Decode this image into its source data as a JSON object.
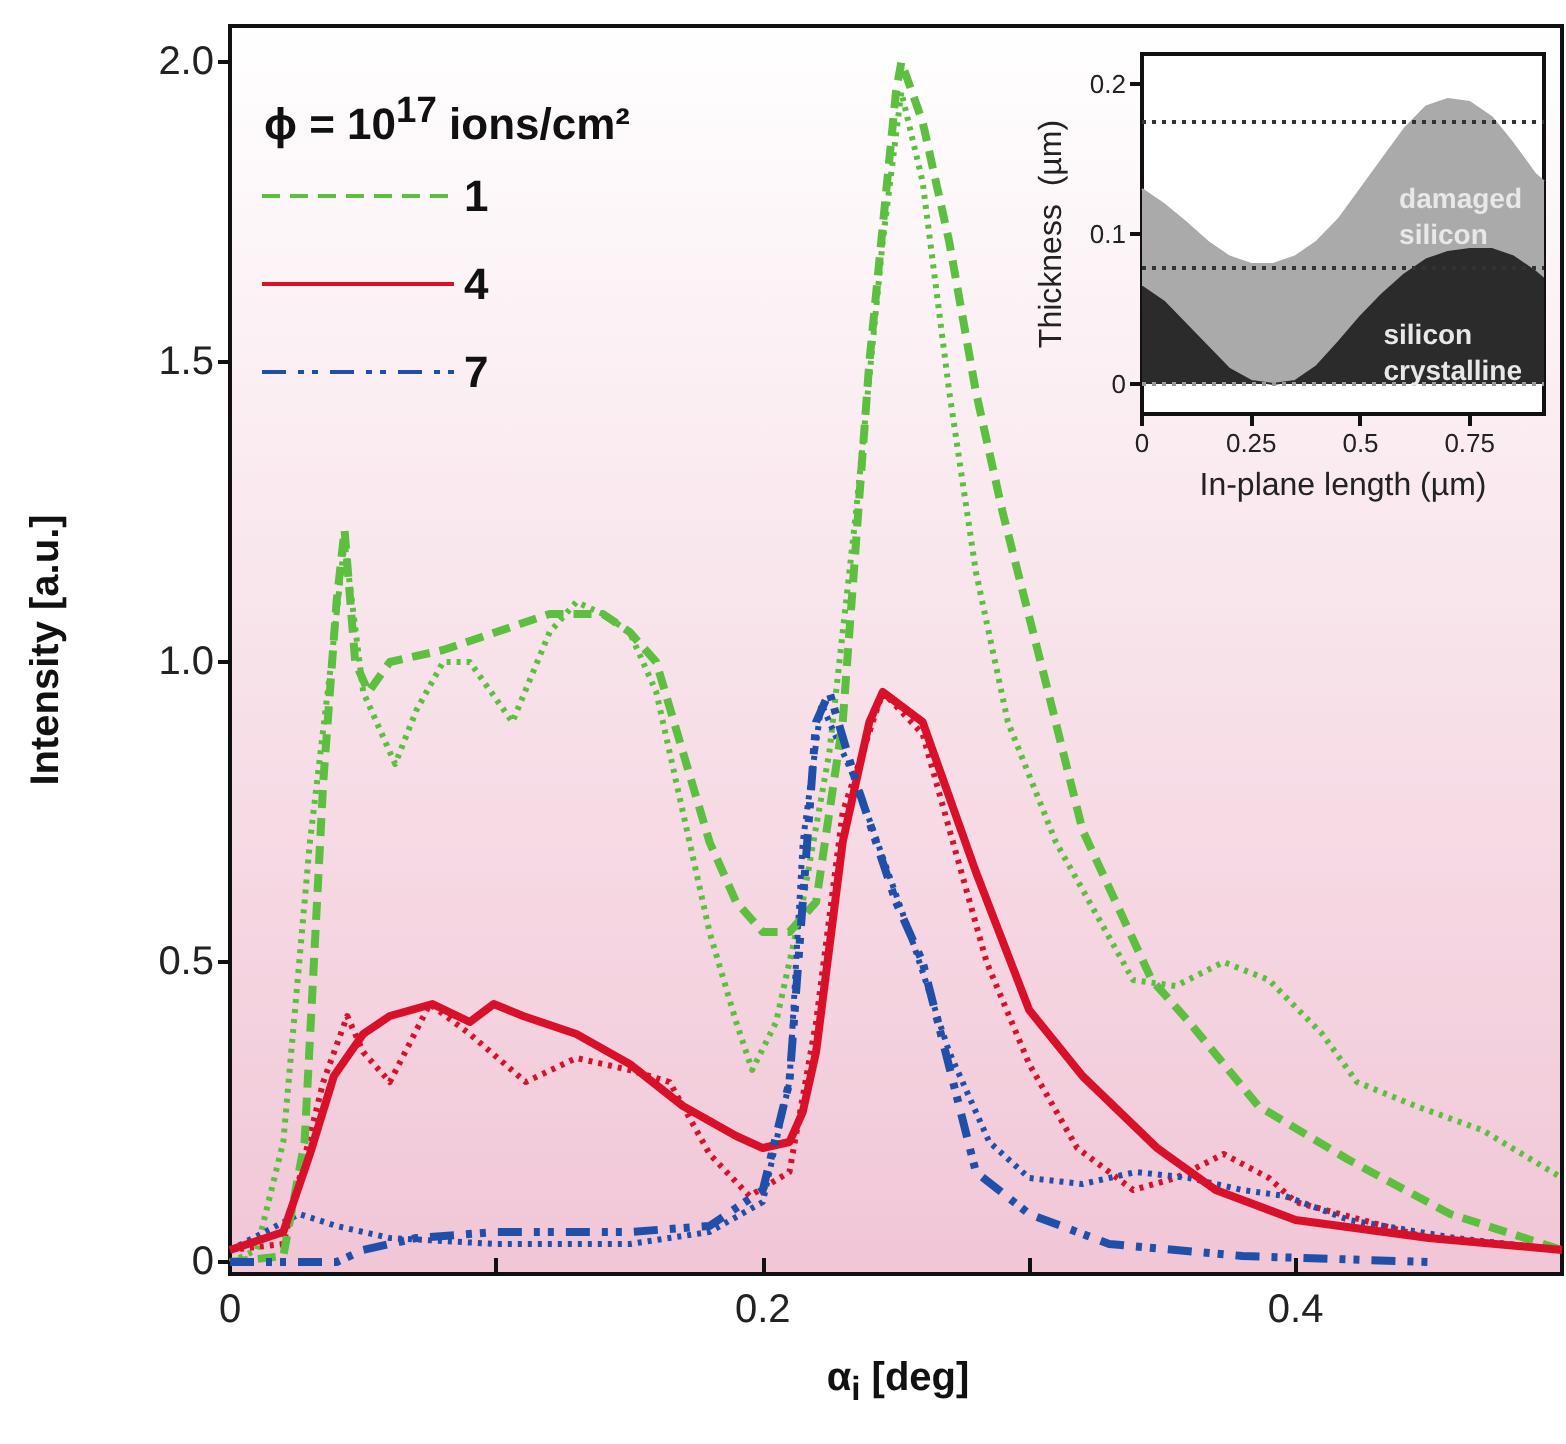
{
  "chart_data": [
    {
      "type": "line",
      "xlabel": "α$_{i}$ [deg]",
      "ylabel": "Intensity [a.u.]",
      "legend_title": "ϕ = 10$^{17}$ ions/cm²",
      "legend": "top left",
      "xlim": [
        0,
        0.5
      ],
      "xticks": [
        0,
        {
          "value": 0.1,
          "label": null
        },
        0.2,
        {
          "value": 0.3,
          "label": null
        },
        0.4
      ],
      "ylim": [
        -0.02,
        2.06
      ],
      "yticks": [
        0,
        0.5,
        {
          "value": 1,
          "label": "1.0"
        },
        1.5,
        {
          "value": 2,
          "label": "2.0"
        }
      ],
      "grid": false,
      "marker": "none",
      "series": [
        {
          "name": "1",
          "color": "#5cbf3f",
          "line_style": "dashed",
          "x": [
            0,
            0.02,
            0.028,
            0.035,
            0.04,
            0.043,
            0.047,
            0.052,
            0.06,
            0.08,
            0.1,
            0.12,
            0.14,
            0.15,
            0.16,
            0.17,
            0.18,
            0.19,
            0.2,
            0.21,
            0.22,
            0.23,
            0.24,
            0.25,
            0.252,
            0.26,
            0.27,
            0.28,
            0.29,
            0.306,
            0.32,
            0.346,
            0.36,
            0.386,
            0.42,
            0.458,
            0.5
          ],
          "values": [
            0,
            0.01,
            0.2,
            0.8,
            1.1,
            1.22,
            1.0,
            0.95,
            1.0,
            1.02,
            1.05,
            1.08,
            1.08,
            1.05,
            1.0,
            0.85,
            0.7,
            0.6,
            0.55,
            0.55,
            0.6,
            0.9,
            1.5,
            1.95,
            2.0,
            1.9,
            1.7,
            1.45,
            1.25,
            0.97,
            0.72,
            0.47,
            0.4,
            0.26,
            0.17,
            0.08,
            0.02
          ]
        },
        {
          "name": "4",
          "color": "#d9102a",
          "line_style": "solid",
          "x": [
            0,
            0.02,
            0.03,
            0.039,
            0.05,
            0.06,
            0.076,
            0.09,
            0.099,
            0.11,
            0.13,
            0.15,
            0.17,
            0.19,
            0.2,
            0.21,
            0.215,
            0.22,
            0.23,
            0.24,
            0.245,
            0.26,
            0.28,
            0.3,
            0.32,
            0.348,
            0.37,
            0.4,
            0.45,
            0.5
          ],
          "values": [
            0.02,
            0.05,
            0.18,
            0.31,
            0.38,
            0.41,
            0.43,
            0.4,
            0.43,
            0.41,
            0.38,
            0.33,
            0.26,
            0.21,
            0.19,
            0.2,
            0.25,
            0.35,
            0.7,
            0.9,
            0.95,
            0.9,
            0.65,
            0.42,
            0.31,
            0.19,
            0.12,
            0.07,
            0.04,
            0.02
          ]
        },
        {
          "name": "7",
          "color": "#1f4fa8",
          "line_style": "dashdot",
          "x": [
            0,
            0.04,
            0.05,
            0.07,
            0.1,
            0.15,
            0.18,
            0.2,
            0.21,
            0.215,
            0.22,
            0.225,
            0.235,
            0.25,
            0.26,
            0.28,
            0.3,
            0.33,
            0.38,
            0.45
          ],
          "values": [
            0,
            0,
            0.02,
            0.04,
            0.05,
            0.05,
            0.06,
            0.12,
            0.3,
            0.6,
            0.9,
            0.95,
            0.8,
            0.6,
            0.5,
            0.15,
            0.08,
            0.03,
            0.01,
            0
          ]
        },
        {
          "color": "#5cbf3f",
          "line_style": "dotted",
          "x": [
            0,
            0.01,
            0.02,
            0.03,
            0.038,
            0.043,
            0.05,
            0.062,
            0.07,
            0.08,
            0.09,
            0.106,
            0.12,
            0.13,
            0.14,
            0.15,
            0.16,
            0.17,
            0.18,
            0.19,
            0.196,
            0.205,
            0.215,
            0.225,
            0.235,
            0.245,
            0.252,
            0.26,
            0.27,
            0.28,
            0.292,
            0.31,
            0.339,
            0.355,
            0.373,
            0.39,
            0.41,
            0.423,
            0.445,
            0.47,
            0.5
          ],
          "values": [
            0,
            0.02,
            0.2,
            0.7,
            1.0,
            1.2,
            0.95,
            0.83,
            0.92,
            1.0,
            1.0,
            0.9,
            1.05,
            1.1,
            1.08,
            1.05,
            0.95,
            0.75,
            0.55,
            0.4,
            0.32,
            0.4,
            0.6,
            0.85,
            1.25,
            1.7,
            1.95,
            1.8,
            1.45,
            1.15,
            0.9,
            0.7,
            0.47,
            0.46,
            0.5,
            0.47,
            0.38,
            0.3,
            0.26,
            0.22,
            0.14
          ]
        },
        {
          "color": "#d9102a",
          "line_style": "dotted",
          "x": [
            0,
            0.02,
            0.035,
            0.044,
            0.05,
            0.06,
            0.075,
            0.09,
            0.111,
            0.13,
            0.15,
            0.165,
            0.18,
            0.195,
            0.21,
            0.22,
            0.23,
            0.245,
            0.26,
            0.284,
            0.3,
            0.318,
            0.339,
            0.355,
            0.373,
            0.39,
            0.4,
            0.45,
            0.5
          ],
          "values": [
            0.02,
            0.03,
            0.3,
            0.41,
            0.35,
            0.3,
            0.43,
            0.38,
            0.3,
            0.34,
            0.32,
            0.3,
            0.18,
            0.11,
            0.15,
            0.4,
            0.75,
            0.95,
            0.88,
            0.5,
            0.33,
            0.19,
            0.12,
            0.14,
            0.18,
            0.14,
            0.1,
            0.04,
            0.02
          ]
        },
        {
          "color": "#1f4fa8",
          "line_style": "dotted",
          "x": [
            0,
            0.026,
            0.04,
            0.06,
            0.1,
            0.15,
            0.18,
            0.2,
            0.21,
            0.215,
            0.222,
            0.235,
            0.255,
            0.27,
            0.285,
            0.3,
            0.32,
            0.34,
            0.36,
            0.38,
            0.396,
            0.42,
            0.46,
            0.5
          ],
          "values": [
            0.02,
            0.08,
            0.06,
            0.04,
            0.03,
            0.03,
            0.05,
            0.1,
            0.3,
            0.7,
            0.93,
            0.8,
            0.55,
            0.35,
            0.2,
            0.14,
            0.13,
            0.15,
            0.14,
            0.12,
            0.11,
            0.07,
            0.04,
            0.02
          ]
        }
      ]
    },
    {
      "type": "area",
      "xlabel": "In-plane length (µm)",
      "ylabel": "Thickness  (µm)",
      "xlim": [
        0,
        0.92
      ],
      "xticks": [
        0,
        0.25,
        0.5,
        0.75
      ],
      "ylim": [
        -0.02,
        0.22
      ],
      "yticks": [
        0,
        0.1,
        0.2
      ],
      "grid": false,
      "legend": false,
      "marker": "none",
      "annotations": [
        "damaged silicon",
        "silicon crystalline"
      ],
      "ref_lines": [
        {
          "axis": "y",
          "value": 0.175,
          "color": "#333333",
          "line_style": "dotted"
        },
        {
          "axis": "y",
          "value": 0.078,
          "color": "#333333",
          "line_style": "dotted"
        },
        {
          "axis": "y",
          "value": 0,
          "color": "#999999",
          "line_style": "dotted"
        }
      ],
      "series": [
        {
          "color": "#aaaaaa",
          "x": [
            0,
            0.05,
            0.1,
            0.15,
            0.2,
            0.25,
            0.3,
            0.35,
            0.4,
            0.45,
            0.5,
            0.55,
            0.6,
            0.65,
            0.7,
            0.75,
            0.8,
            0.85,
            0.9,
            0.92
          ],
          "values": [
            0.13,
            0.12,
            0.108,
            0.095,
            0.085,
            0.08,
            0.08,
            0.085,
            0.095,
            0.11,
            0.13,
            0.15,
            0.17,
            0.185,
            0.19,
            0.188,
            0.178,
            0.16,
            0.14,
            0.135
          ]
        },
        {
          "color": "#2b2b2b",
          "x": [
            0,
            0.05,
            0.1,
            0.15,
            0.2,
            0.25,
            0.3,
            0.35,
            0.4,
            0.45,
            0.5,
            0.55,
            0.6,
            0.65,
            0.7,
            0.75,
            0.8,
            0.85,
            0.9,
            0.92
          ],
          "values": [
            0.065,
            0.055,
            0.04,
            0.025,
            0.01,
            0.002,
            0,
            0.002,
            0.012,
            0.028,
            0.045,
            0.06,
            0.073,
            0.083,
            0.088,
            0.09,
            0.09,
            0.085,
            0.075,
            0.07
          ]
        }
      ]
    }
  ]
}
